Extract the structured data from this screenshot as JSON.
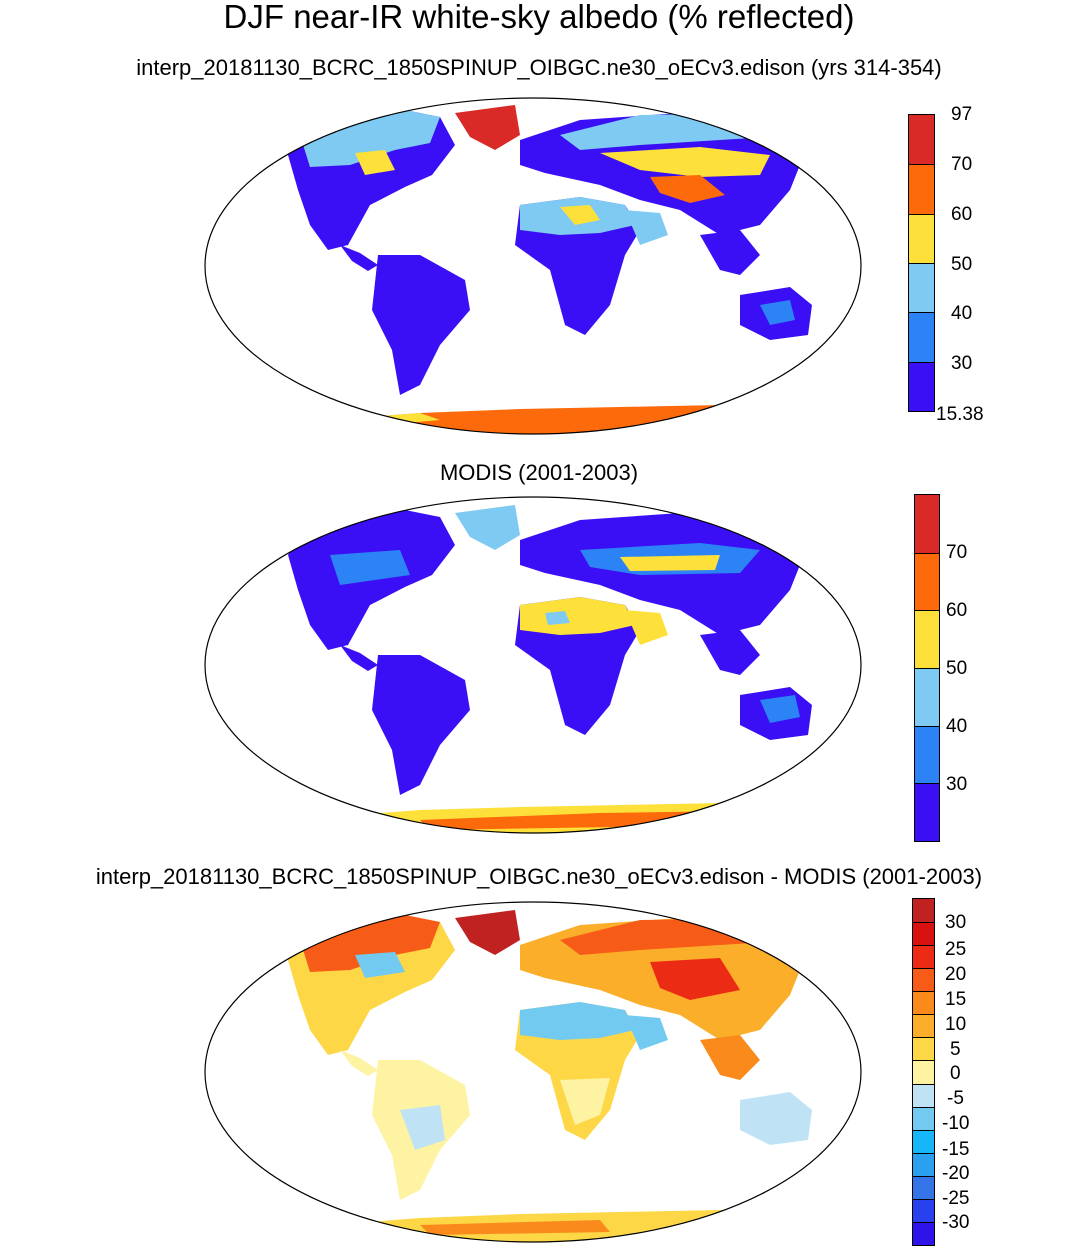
{
  "title": "DJF near-IR white-sky albedo (% reflected)",
  "panels": [
    {
      "subtitle": "interp_20181130_BCRC_1850SPINUP_OIBGC.ne30_oECv3.edison (yrs 314-354)",
      "colorbar": {
        "colors": [
          "#3b0ff5",
          "#2b83f6",
          "#7fcaf2",
          "#fde13a",
          "#fd6a0c",
          "#d92a27"
        ],
        "labels": [
          "15.38",
          "30",
          "40",
          "50",
          "60",
          "70",
          "97"
        ]
      }
    },
    {
      "subtitle": "MODIS (2001-2003)",
      "colorbar": {
        "colors": [
          "#3b0ff5",
          "#2b83f6",
          "#7fcaf2",
          "#fde13a",
          "#fd6a0c",
          "#d92a27"
        ],
        "labels": [
          "",
          "30",
          "40",
          "50",
          "60",
          "70",
          ""
        ]
      }
    },
    {
      "subtitle": "interp_20181130_BCRC_1850SPINUP_OIBGC.ne30_oECv3.edison - MODIS (2001-2003)",
      "colorbar": {
        "colors": [
          "#2e14e8",
          "#2940ee",
          "#3474e6",
          "#2aa0ee",
          "#17b6f8",
          "#72caf0",
          "#bfe3f5",
          "#fdf3a3",
          "#fdd746",
          "#fbae2a",
          "#fb8a1d",
          "#f65c18",
          "#ec2b14",
          "#da1111",
          "#c02222"
        ],
        "labels": [
          "",
          "-30",
          "-25",
          "-20",
          "-15",
          "-10",
          "-5",
          "0",
          "5",
          "10",
          "15",
          "20",
          "25",
          "30",
          ""
        ]
      }
    }
  ]
}
